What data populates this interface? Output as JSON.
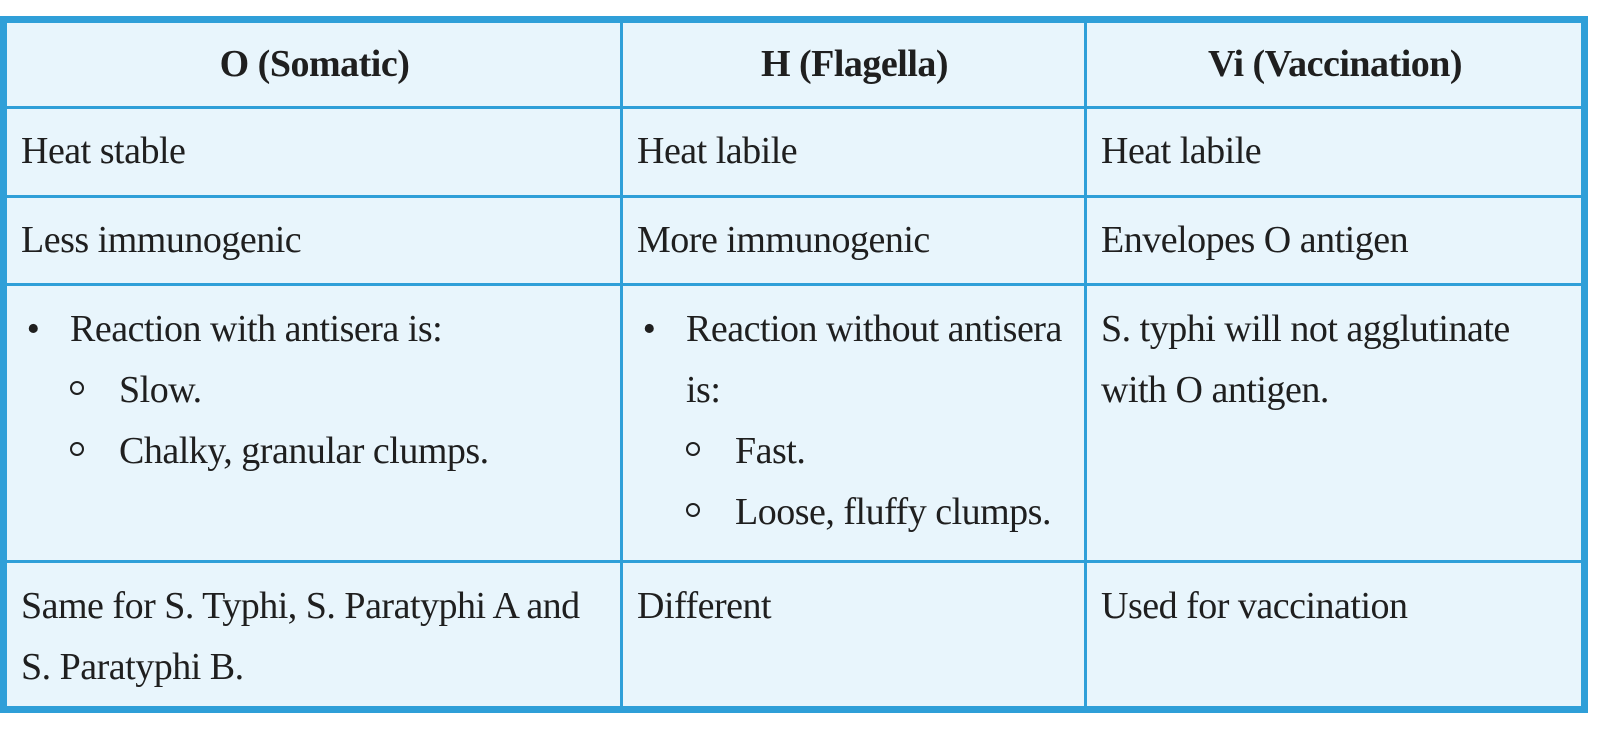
{
  "table": {
    "headers": [
      "O (Somatic)",
      "H (Flagella)",
      "Vi (Vaccination)"
    ],
    "rows": [
      {
        "o": "Heat stable",
        "h": "Heat labile",
        "vi": "Heat labile"
      },
      {
        "o": "Less immunogenic",
        "h": "More immunogenic",
        "vi": "Envelopes O antigen"
      },
      {
        "o": {
          "bullet": "Reaction with antisera is:",
          "sub": [
            "Slow.",
            "Chalky, granular clumps."
          ]
        },
        "h": {
          "bullet": "Reaction without antisera is:",
          "sub": [
            "Fast.",
            "Loose, fluffy clumps."
          ]
        },
        "vi": "S. typhi will not agglutinate with O antigen."
      },
      {
        "o": "Same for S. Typhi, S. Paratyphi A and S. Paratyphi B.",
        "h": "Different",
        "vi": "Used for vaccination"
      }
    ]
  },
  "colors": {
    "border": "#2f9fd8",
    "background": "#e8f5fc",
    "text": "#1f1f1f"
  }
}
